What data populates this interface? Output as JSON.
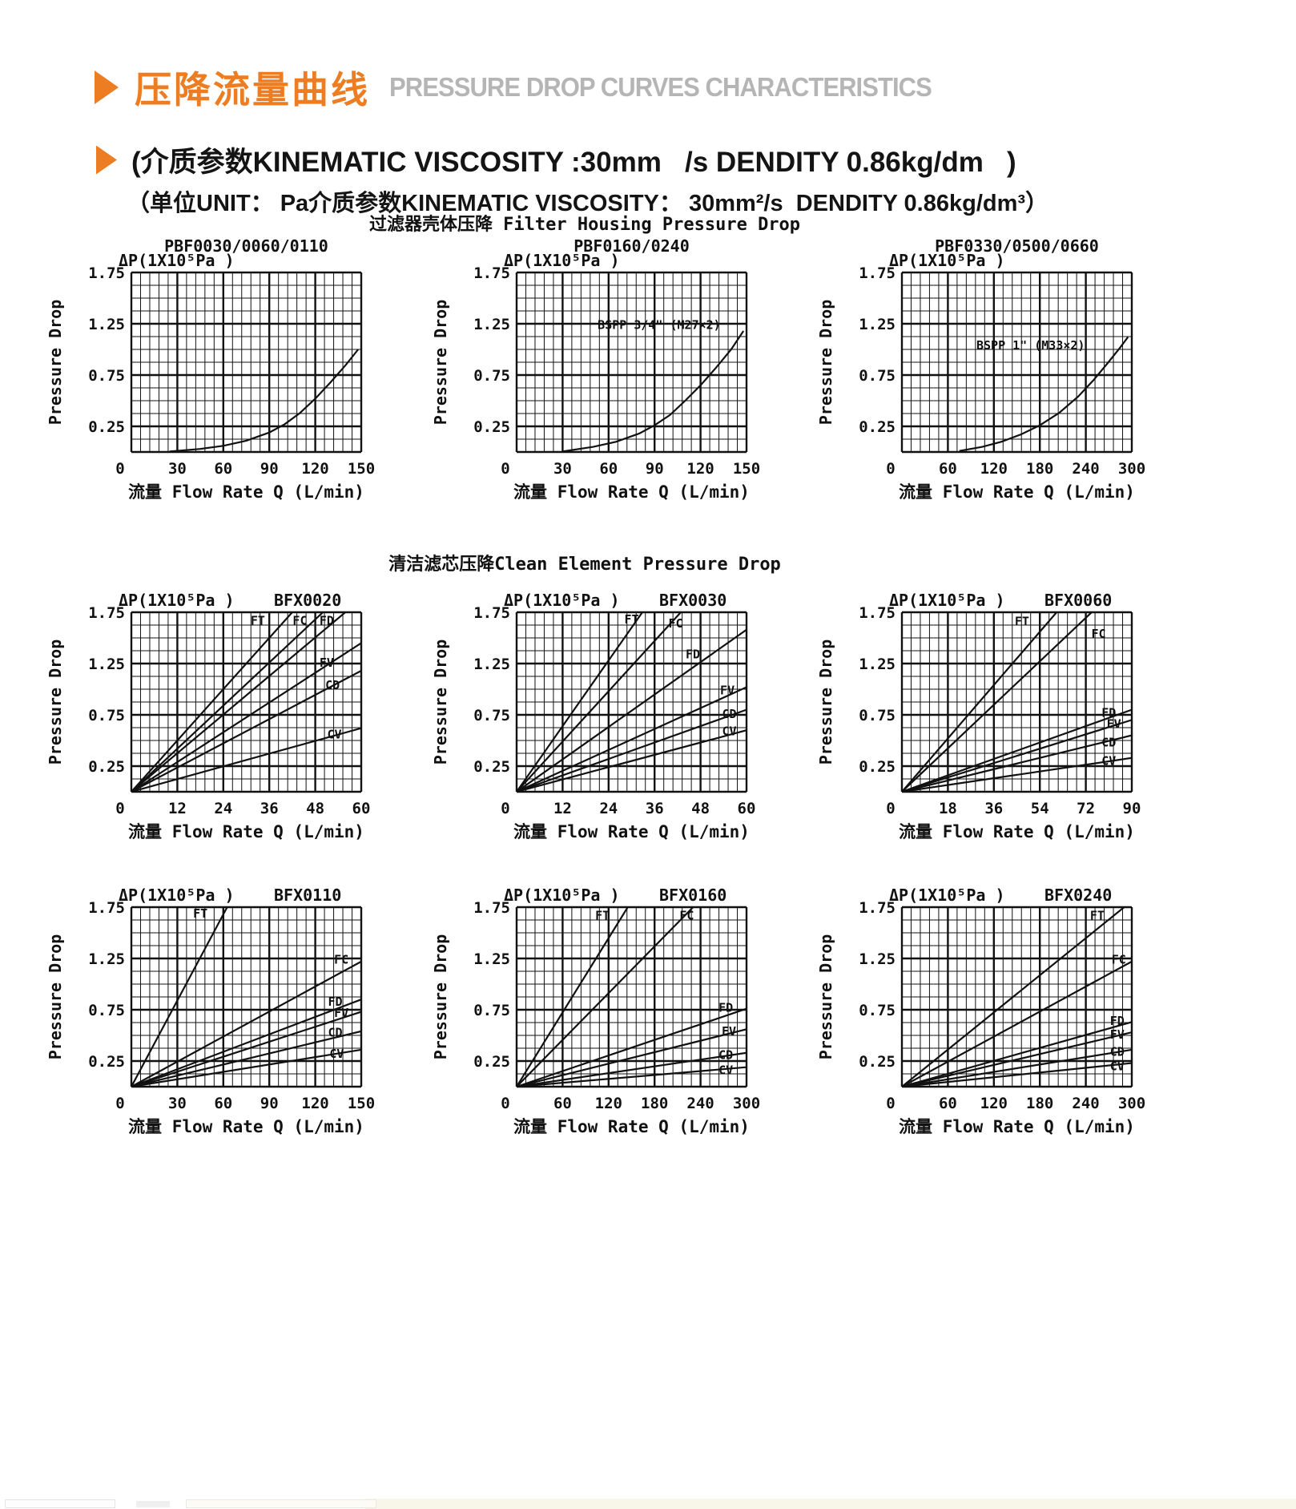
{
  "header": {
    "accent_color": "#ED7D22",
    "title_en_color": "#B5B5B5",
    "title_cn": "压降流量曲线",
    "title_en": "PRESSURE DROP CURVES CHARACTERISTICS",
    "subtitle1": "(介质参数KINEMATIC VISCOSITY :30mm   /s DENDITY 0.86kg/dm   )",
    "subtitle2": "（单位UNIT： Pa介质参数KINEMATIC VISCOSITY： 30mm²/s  DENDITY 0.86kg/dm³）"
  },
  "sections": [
    {
      "title": "过滤器壳体压降 Filter Housing Pressure Drop"
    },
    {
      "title": "清洁滤芯压降Clean Element Pressure Drop"
    }
  ],
  "chart_common": {
    "delta_label": "ΔP(1X10⁵Pa )",
    "pressure_label": "Pressure Drop",
    "xlabel": "流量 Flow Rate  Q (L/min)",
    "ink_color": "#111111"
  },
  "chart_data": [
    {
      "type": "line",
      "id": "pbf0030-0060-0110",
      "name": "PBF0030/0060/0110",
      "name_position": "above",
      "xlim": [
        0,
        150
      ],
      "ylim": [
        0,
        1.75
      ],
      "x_ticks": [
        0,
        30,
        60,
        90,
        120,
        150
      ],
      "y_ticks": [
        1.75,
        1.25,
        0.75,
        0.25
      ],
      "series": [
        {
          "name": "",
          "points": [
            [
              25,
              0.005
            ],
            [
              45,
              0.03
            ],
            [
              60,
              0.06
            ],
            [
              75,
              0.11
            ],
            [
              90,
              0.19
            ],
            [
              100,
              0.27
            ],
            [
              110,
              0.38
            ],
            [
              120,
              0.52
            ],
            [
              130,
              0.68
            ],
            [
              140,
              0.85
            ],
            [
              148,
              1.0
            ]
          ]
        }
      ]
    },
    {
      "type": "line",
      "id": "pbf0160-0240",
      "name": "PBF0160/0240",
      "name_position": "above",
      "xlim": [
        0,
        150
      ],
      "ylim": [
        0,
        1.75
      ],
      "x_ticks": [
        0,
        30,
        60,
        90,
        120,
        150
      ],
      "y_ticks": [
        1.75,
        1.25,
        0.75,
        0.25
      ],
      "annotation": {
        "text": "BSPP 3/4\"  (M27×2)",
        "x": 93,
        "y": 1.2
      },
      "series": [
        {
          "name": "",
          "points": [
            [
              30,
              0.005
            ],
            [
              50,
              0.05
            ],
            [
              65,
              0.1
            ],
            [
              80,
              0.18
            ],
            [
              90,
              0.26
            ],
            [
              100,
              0.36
            ],
            [
              110,
              0.5
            ],
            [
              120,
              0.65
            ],
            [
              130,
              0.82
            ],
            [
              140,
              1.0
            ],
            [
              148,
              1.18
            ]
          ]
        }
      ]
    },
    {
      "type": "line",
      "id": "pbf0330-0500-0660",
      "name": "PBF0330/0500/0660",
      "name_position": "above",
      "xlim": [
        0,
        300
      ],
      "ylim": [
        0,
        1.75
      ],
      "x_ticks": [
        0,
        60,
        120,
        180,
        240,
        300
      ],
      "y_ticks": [
        1.75,
        1.25,
        0.75,
        0.25
      ],
      "annotation": {
        "text": "BSPP 1\"  (M33×2)",
        "x": 168,
        "y": 1.0
      },
      "series": [
        {
          "name": "",
          "points": [
            [
              75,
              0.01
            ],
            [
              105,
              0.05
            ],
            [
              130,
              0.1
            ],
            [
              155,
              0.17
            ],
            [
              180,
              0.26
            ],
            [
              205,
              0.38
            ],
            [
              230,
              0.54
            ],
            [
              250,
              0.7
            ],
            [
              270,
              0.88
            ],
            [
              285,
              1.02
            ],
            [
              295,
              1.12
            ]
          ]
        }
      ]
    },
    {
      "type": "line",
      "id": "bfx0020",
      "name": "BFX0020",
      "name_position": "inline",
      "xlim": [
        0,
        60
      ],
      "ylim": [
        0,
        1.75
      ],
      "x_ticks": [
        0,
        12,
        24,
        36,
        48,
        60
      ],
      "y_ticks": [
        1.75,
        1.25,
        0.75,
        0.25
      ],
      "series": [
        {
          "name": "FT",
          "points": [
            [
              0,
              0
            ],
            [
              60,
              2.5
            ]
          ],
          "label": {
            "x": 33,
            "y": 1.63
          }
        },
        {
          "name": "FC",
          "points": [
            [
              0,
              0
            ],
            [
              60,
              2.1
            ]
          ],
          "label": {
            "x": 44,
            "y": 1.63
          }
        },
        {
          "name": "FD",
          "points": [
            [
              0,
              0
            ],
            [
              60,
              1.88
            ]
          ],
          "label": {
            "x": 51,
            "y": 1.63
          }
        },
        {
          "name": "FV",
          "points": [
            [
              0,
              0
            ],
            [
              60,
              1.45
            ]
          ],
          "label": {
            "x": 51,
            "y": 1.22
          }
        },
        {
          "name": "CD",
          "points": [
            [
              0,
              0
            ],
            [
              60,
              1.18
            ]
          ],
          "label": {
            "x": 52.5,
            "y": 1.0
          }
        },
        {
          "name": "CV",
          "points": [
            [
              0,
              0
            ],
            [
              60,
              0.62
            ]
          ],
          "label": {
            "x": 53,
            "y": 0.52
          }
        }
      ]
    },
    {
      "type": "line",
      "id": "bfx0030",
      "name": "BFX0030",
      "name_position": "inline",
      "xlim": [
        0,
        60
      ],
      "ylim": [
        0,
        1.75
      ],
      "x_ticks": [
        0,
        12,
        24,
        36,
        48,
        60
      ],
      "y_ticks": [
        1.75,
        1.25,
        0.75,
        0.25
      ],
      "series": [
        {
          "name": "FT",
          "points": [
            [
              0,
              0
            ],
            [
              60,
              3.2
            ]
          ],
          "label": {
            "x": 30,
            "y": 1.64
          }
        },
        {
          "name": "FC",
          "points": [
            [
              0,
              0
            ],
            [
              60,
              2.45
            ]
          ],
          "label": {
            "x": 41.5,
            "y": 1.6
          }
        },
        {
          "name": "FD",
          "points": [
            [
              0,
              0
            ],
            [
              60,
              1.58
            ]
          ],
          "label": {
            "x": 46,
            "y": 1.3
          }
        },
        {
          "name": "FV",
          "points": [
            [
              0,
              0
            ],
            [
              60,
              1.02
            ]
          ],
          "label": {
            "x": 55,
            "y": 0.95
          }
        },
        {
          "name": "CD",
          "points": [
            [
              0,
              0
            ],
            [
              60,
              0.8
            ]
          ],
          "label": {
            "x": 55.5,
            "y": 0.72
          }
        },
        {
          "name": "CV",
          "points": [
            [
              0,
              0
            ],
            [
              60,
              0.6
            ]
          ],
          "label": {
            "x": 55.5,
            "y": 0.55
          }
        }
      ]
    },
    {
      "type": "line",
      "id": "bfx0060",
      "name": "BFX0060",
      "name_position": "inline",
      "xlim": [
        0,
        90
      ],
      "ylim": [
        0,
        1.75
      ],
      "x_ticks": [
        0,
        18,
        36,
        54,
        72,
        90
      ],
      "y_ticks": [
        1.75,
        1.25,
        0.75,
        0.25
      ],
      "series": [
        {
          "name": "FT",
          "points": [
            [
              0,
              0
            ],
            [
              90,
              2.6
            ]
          ],
          "label": {
            "x": 47,
            "y": 1.62
          }
        },
        {
          "name": "FC",
          "points": [
            [
              0,
              0
            ],
            [
              90,
              2.12
            ]
          ],
          "label": {
            "x": 77,
            "y": 1.5
          }
        },
        {
          "name": "FD",
          "points": [
            [
              0,
              0
            ],
            [
              90,
              0.8
            ]
          ],
          "label": {
            "x": 81,
            "y": 0.73
          }
        },
        {
          "name": "FV",
          "points": [
            [
              0,
              0
            ],
            [
              90,
              0.7
            ]
          ],
          "label": {
            "x": 83,
            "y": 0.62
          }
        },
        {
          "name": "CD",
          "points": [
            [
              0,
              0
            ],
            [
              90,
              0.55
            ]
          ],
          "label": {
            "x": 81,
            "y": 0.44
          }
        },
        {
          "name": "CV",
          "points": [
            [
              0,
              0
            ],
            [
              90,
              0.33
            ]
          ],
          "label": {
            "x": 81,
            "y": 0.26
          }
        }
      ]
    },
    {
      "type": "line",
      "id": "bfx0110",
      "name": "BFX0110",
      "name_position": "inline",
      "xlim": [
        0,
        150
      ],
      "ylim": [
        0,
        1.75
      ],
      "x_ticks": [
        0,
        30,
        60,
        90,
        120,
        150
      ],
      "y_ticks": [
        1.75,
        1.25,
        0.75,
        0.25
      ],
      "series": [
        {
          "name": "FT",
          "points": [
            [
              0,
              0
            ],
            [
              150,
              4.2
            ]
          ],
          "label": {
            "x": 45,
            "y": 1.65
          }
        },
        {
          "name": "FC",
          "points": [
            [
              0,
              0
            ],
            [
              150,
              1.22
            ]
          ],
          "label": {
            "x": 137,
            "y": 1.2
          }
        },
        {
          "name": "FD",
          "points": [
            [
              0,
              0
            ],
            [
              150,
              0.85
            ]
          ],
          "label": {
            "x": 133,
            "y": 0.79
          }
        },
        {
          "name": "FV",
          "points": [
            [
              0,
              0
            ],
            [
              150,
              0.73
            ]
          ],
          "label": {
            "x": 137,
            "y": 0.68
          }
        },
        {
          "name": "CD",
          "points": [
            [
              0,
              0
            ],
            [
              150,
              0.54
            ]
          ],
          "label": {
            "x": 133,
            "y": 0.49
          }
        },
        {
          "name": "CV",
          "points": [
            [
              0,
              0
            ],
            [
              150,
              0.36
            ]
          ],
          "label": {
            "x": 134,
            "y": 0.28
          }
        }
      ]
    },
    {
      "type": "line",
      "id": "bfx0160",
      "name": "BFX0160",
      "name_position": "inline",
      "xlim": [
        0,
        300
      ],
      "ylim": [
        0,
        1.75
      ],
      "x_ticks": [
        0,
        60,
        120,
        180,
        240,
        300
      ],
      "y_ticks": [
        1.75,
        1.25,
        0.75,
        0.25
      ],
      "series": [
        {
          "name": "FT",
          "points": [
            [
              0,
              0
            ],
            [
              300,
              3.62
            ]
          ],
          "label": {
            "x": 112,
            "y": 1.63
          }
        },
        {
          "name": "FC",
          "points": [
            [
              0,
              0
            ],
            [
              300,
              2.28
            ]
          ],
          "label": {
            "x": 222,
            "y": 1.63
          }
        },
        {
          "name": "FD",
          "points": [
            [
              0,
              0
            ],
            [
              300,
              0.76
            ]
          ],
          "label": {
            "x": 273,
            "y": 0.73
          }
        },
        {
          "name": "FV",
          "points": [
            [
              0,
              0
            ],
            [
              300,
              0.56
            ]
          ],
          "label": {
            "x": 277,
            "y": 0.5
          }
        },
        {
          "name": "CD",
          "points": [
            [
              0,
              0
            ],
            [
              300,
              0.33
            ]
          ],
          "label": {
            "x": 273,
            "y": 0.27
          }
        },
        {
          "name": "CV",
          "points": [
            [
              0,
              0
            ],
            [
              300,
              0.19
            ]
          ],
          "label": {
            "x": 273,
            "y": 0.12
          }
        }
      ]
    },
    {
      "type": "line",
      "id": "bfx0240",
      "name": "BFX0240",
      "name_position": "inline",
      "xlim": [
        0,
        300
      ],
      "ylim": [
        0,
        1.75
      ],
      "x_ticks": [
        0,
        60,
        120,
        180,
        240,
        300
      ],
      "y_ticks": [
        1.75,
        1.25,
        0.75,
        0.25
      ],
      "series": [
        {
          "name": "FT",
          "points": [
            [
              0,
              0
            ],
            [
              300,
              1.81
            ]
          ],
          "label": {
            "x": 255,
            "y": 1.63
          }
        },
        {
          "name": "FC",
          "points": [
            [
              0,
              0
            ],
            [
              300,
              1.22
            ]
          ],
          "label": {
            "x": 283,
            "y": 1.2
          }
        },
        {
          "name": "FD",
          "points": [
            [
              0,
              0
            ],
            [
              300,
              0.63
            ]
          ],
          "label": {
            "x": 281,
            "y": 0.6
          }
        },
        {
          "name": "FV",
          "points": [
            [
              0,
              0
            ],
            [
              300,
              0.53
            ]
          ],
          "label": {
            "x": 281,
            "y": 0.47
          }
        },
        {
          "name": "CD",
          "points": [
            [
              0,
              0
            ],
            [
              300,
              0.36
            ]
          ],
          "label": {
            "x": 281,
            "y": 0.3
          }
        },
        {
          "name": "CV",
          "points": [
            [
              0,
              0
            ],
            [
              300,
              0.23
            ]
          ],
          "label": {
            "x": 281,
            "y": 0.16
          }
        }
      ]
    }
  ]
}
